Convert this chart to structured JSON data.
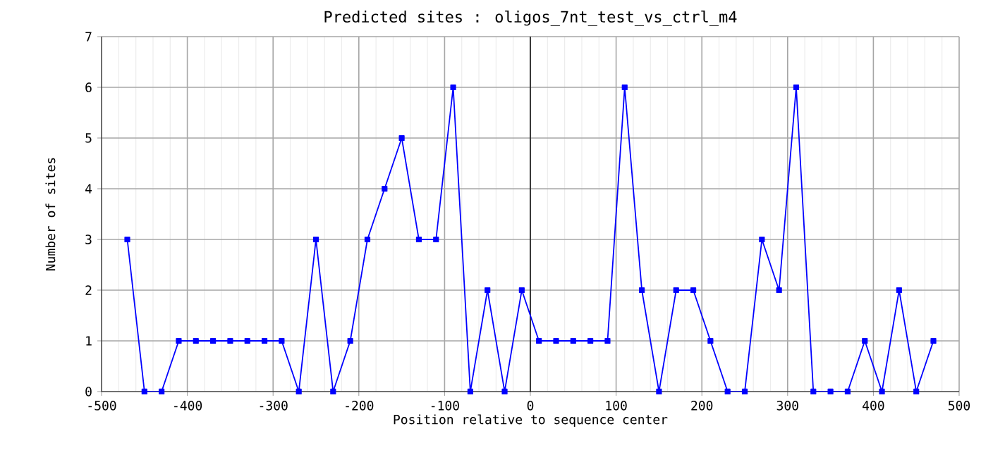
{
  "chart_data": {
    "type": "line",
    "title": "Predicted sites : oligos_7nt_test_vs_ctrl_m4",
    "xlabel": "Position relative to sequence center",
    "ylabel": "Number of sites",
    "x": [
      -470,
      -450,
      -430,
      -410,
      -390,
      -370,
      -350,
      -330,
      -310,
      -290,
      -270,
      -250,
      -230,
      -210,
      -190,
      -170,
      -150,
      -130,
      -110,
      -90,
      -70,
      -50,
      -30,
      -10,
      10,
      30,
      50,
      70,
      90,
      110,
      130,
      150,
      170,
      190,
      210,
      230,
      250,
      270,
      290,
      310,
      330,
      350,
      370,
      390,
      410,
      430,
      450,
      470
    ],
    "series": [
      {
        "color": "#0000ff",
        "values": [
          3,
          0,
          0,
          1,
          1,
          1,
          1,
          1,
          1,
          1,
          0,
          3,
          0,
          1,
          3,
          4,
          5,
          3,
          3,
          6,
          0,
          2,
          0,
          2,
          1,
          1,
          1,
          1,
          1,
          6,
          2,
          0,
          2,
          2,
          1,
          0,
          0,
          3,
          2,
          6,
          0,
          0,
          0,
          1,
          0,
          2,
          0,
          1
        ]
      }
    ],
    "xlim": [
      -500,
      500
    ],
    "xticks": [
      -500,
      -400,
      -300,
      -200,
      -100,
      0,
      100,
      200,
      300,
      400,
      500
    ],
    "ylim": [
      0,
      7
    ],
    "yticks": [
      0,
      1,
      2,
      3,
      4,
      5,
      6,
      7
    ],
    "ref_lines": [
      {
        "axis": "x",
        "value": 0,
        "color": "#000000"
      }
    ],
    "grid": true,
    "marker": "square",
    "line_style": "solid"
  }
}
